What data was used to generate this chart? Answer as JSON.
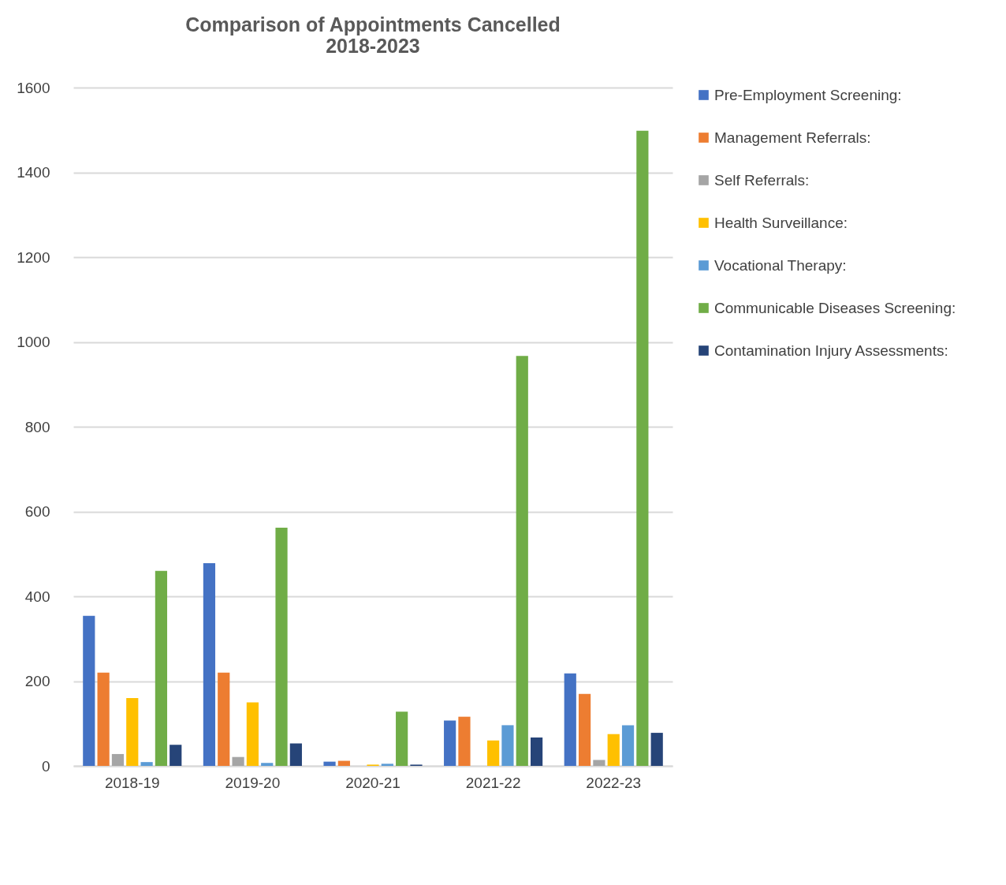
{
  "chart_data": {
    "type": "bar",
    "title": "Comparison of Appointments Cancelled\n2018-2023",
    "categories": [
      "2018-19",
      "2019-20",
      "2020-21",
      "2021-22",
      "2022-23"
    ],
    "series": [
      {
        "name": "Pre-Employment Screening:",
        "color": "#4472c4",
        "values": [
          354,
          478,
          10,
          107,
          218
        ]
      },
      {
        "name": "Management Referrals:",
        "color": "#ed7d31",
        "values": [
          220,
          220,
          12,
          116,
          170
        ]
      },
      {
        "name": "Self Referrals:",
        "color": "#a5a5a5",
        "values": [
          28,
          21,
          0,
          null,
          14
        ]
      },
      {
        "name": "Health Surveillance:",
        "color": "#ffc000",
        "values": [
          160,
          150,
          3,
          60,
          75
        ]
      },
      {
        "name": "Vocational Therapy:",
        "color": "#5b9bd5",
        "values": [
          9,
          7,
          5,
          96,
          96
        ]
      },
      {
        "name": "Communicable Diseases Screening:",
        "color": "#70ad47",
        "values": [
          460,
          562,
          128,
          967,
          1498
        ]
      },
      {
        "name": "Contamination Injury Assessments:",
        "color": "#264478",
        "values": [
          50,
          53,
          3,
          67,
          78
        ]
      }
    ],
    "ylim": [
      0,
      1600
    ],
    "yticks": [
      0,
      200,
      400,
      600,
      800,
      1000,
      1200,
      1400,
      1600
    ],
    "grid": "y",
    "legend": "right"
  }
}
